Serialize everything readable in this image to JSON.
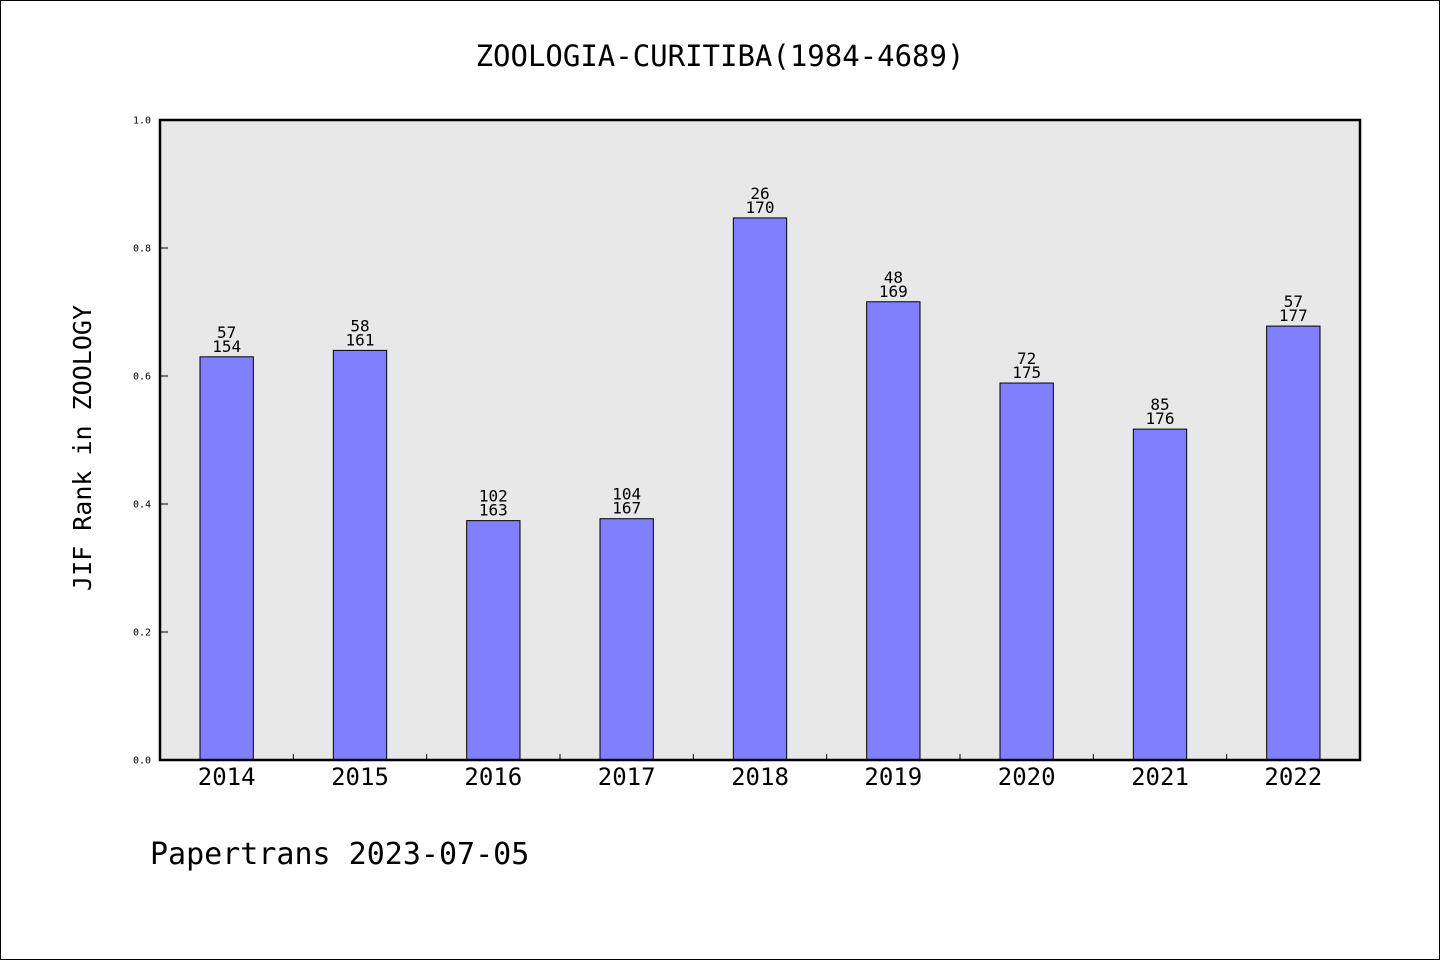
{
  "chart_data": {
    "type": "bar",
    "title": "ZOOLOGIA-CURITIBA(1984-4689)",
    "ylabel": "JIF Rank in ZOOLOGY",
    "categories": [
      "2014",
      "2015",
      "2016",
      "2017",
      "2018",
      "2019",
      "2020",
      "2021",
      "2022"
    ],
    "values": [
      0.63,
      0.64,
      0.374,
      0.377,
      0.847,
      0.716,
      0.589,
      0.517,
      0.678
    ],
    "data_labels": [
      {
        "rank": "57",
        "total": "154"
      },
      {
        "rank": "58",
        "total": "161"
      },
      {
        "rank": "102",
        "total": "163"
      },
      {
        "rank": "104",
        "total": "167"
      },
      {
        "rank": "26",
        "total": "170"
      },
      {
        "rank": "48",
        "total": "169"
      },
      {
        "rank": "72",
        "total": "175"
      },
      {
        "rank": "85",
        "total": "176"
      },
      {
        "rank": "57",
        "total": "177"
      }
    ],
    "ylim": [
      0,
      1
    ],
    "yticks": [
      "0.0",
      "0.2",
      "0.4",
      "0.6",
      "0.8",
      "1.0"
    ],
    "grid": false,
    "colors": {
      "bar": "#8080ff",
      "bar_edge": "#000000",
      "plot_background": "#e8e8e8"
    }
  },
  "footer": {
    "stamp": "Papertrans 2023-07-05"
  }
}
